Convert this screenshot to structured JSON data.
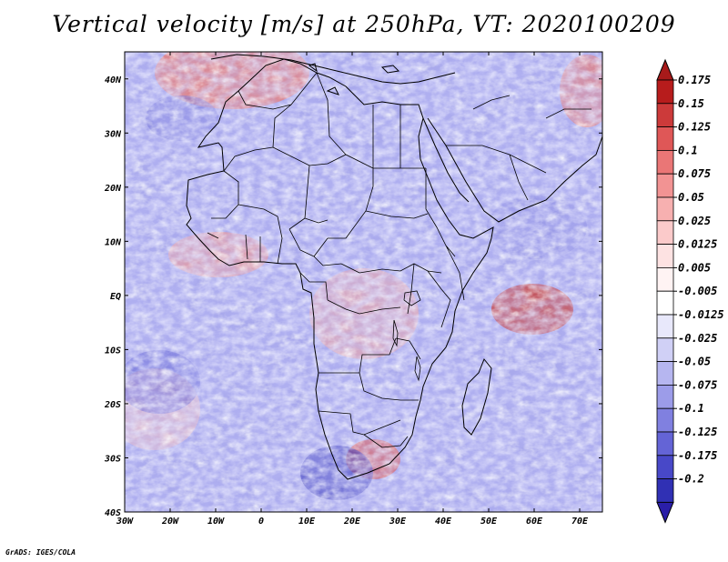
{
  "title": "Vertical velocity [m/s] at 250hPa, VT: 2020100209",
  "footer": "GrADS: IGES/COLA",
  "map": {
    "lon_range": [
      -30,
      75
    ],
    "lat_range": [
      -40,
      45
    ],
    "lon_ticks": [
      {
        "value": -30,
        "label": "30W"
      },
      {
        "value": -20,
        "label": "20W"
      },
      {
        "value": -10,
        "label": "10W"
      },
      {
        "value": 0,
        "label": "0"
      },
      {
        "value": 10,
        "label": "10E"
      },
      {
        "value": 20,
        "label": "20E"
      },
      {
        "value": 30,
        "label": "30E"
      },
      {
        "value": 40,
        "label": "40E"
      },
      {
        "value": 50,
        "label": "50E"
      },
      {
        "value": 60,
        "label": "60E"
      },
      {
        "value": 70,
        "label": "70E"
      }
    ],
    "lat_ticks": [
      {
        "value": 40,
        "label": "40N"
      },
      {
        "value": 30,
        "label": "30N"
      },
      {
        "value": 20,
        "label": "20N"
      },
      {
        "value": 10,
        "label": "10N"
      },
      {
        "value": 0,
        "label": "EQ"
      },
      {
        "value": -10,
        "label": "10S"
      },
      {
        "value": -20,
        "label": "20S"
      },
      {
        "value": -30,
        "label": "30S"
      },
      {
        "value": -40,
        "label": "40S"
      }
    ]
  },
  "colorbar": {
    "levels": [
      {
        "label": "0.175",
        "color": "#b71c1c"
      },
      {
        "label": "0.15",
        "color": "#cc3a3a"
      },
      {
        "label": "0.125",
        "color": "#df5757"
      },
      {
        "label": "0.1",
        "color": "#ea7676"
      },
      {
        "label": "0.075",
        "color": "#f29393"
      },
      {
        "label": "0.05",
        "color": "#f7b0b0"
      },
      {
        "label": "0.025",
        "color": "#fbcaca"
      },
      {
        "label": "0.0125",
        "color": "#fde2e2"
      },
      {
        "label": "0.005",
        "color": "#fff3f3"
      },
      {
        "label": "-0.005",
        "color": "#ffffff"
      },
      {
        "label": "-0.0125",
        "color": "#e8e8fb"
      },
      {
        "label": "-0.025",
        "color": "#d0d0f6"
      },
      {
        "label": "-0.05",
        "color": "#b6b6f0"
      },
      {
        "label": "-0.075",
        "color": "#9c9ce9"
      },
      {
        "label": "-0.1",
        "color": "#8080e0"
      },
      {
        "label": "-0.125",
        "color": "#6464d6"
      },
      {
        "label": "-0.175",
        "color": "#4848c8"
      },
      {
        "label": "-0.2",
        "color": "#3030b4"
      }
    ],
    "top_color": "#a81a1a",
    "bottom_color": "#2a1ea8"
  }
}
